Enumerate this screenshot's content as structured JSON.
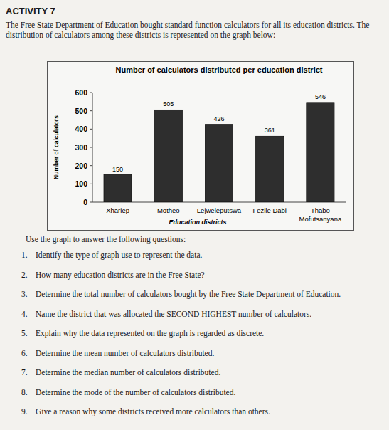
{
  "document": {
    "heading": "ACTIVITY 7",
    "intro": "The Free State Department of Education bought standard function calculators for all its education districts. The distribution of calculators among these districts is represented on the graph below:",
    "instruction": "Use the graph to answer the following questions:",
    "questions": [
      {
        "number": "1.",
        "text": "Identify the type of graph use to represent the data."
      },
      {
        "number": "2.",
        "text": "How many education districts are in the Free State?"
      },
      {
        "number": "3.",
        "text": "Determine the total number of calculators bought by the Free State Department of Education."
      },
      {
        "number": "4.",
        "text": "Name the district that was allocated the SECOND HIGHEST number of calculators."
      },
      {
        "number": "5.",
        "text": "Explain why the data represented on the graph is regarded as discrete."
      },
      {
        "number": "6.",
        "text": "Determine the mean number of calculators distributed."
      },
      {
        "number": "7.",
        "text": "Determine the median number of calculators distributed."
      },
      {
        "number": "8.",
        "text": "Determine the mode of the number of calculators distributed."
      },
      {
        "number": "9.",
        "text": "Give a reason why some districts received more calculators than others."
      }
    ]
  },
  "chart_data": {
    "type": "bar",
    "title": "Number of calculators distributed per education district",
    "x_label": "Education districts",
    "y_label": "Number of calculators",
    "categories": [
      "Xhariep",
      "Motheo",
      "Lejweleputswa",
      "Fezile Dabi",
      "Thabo Mofutsanyana"
    ],
    "values": [
      150,
      505,
      426,
      361,
      546
    ],
    "color": "#2e2e2e",
    "ylim": [
      0,
      600
    ],
    "yticks": [
      0,
      100,
      200,
      300,
      400,
      500,
      600
    ],
    "grid": false,
    "data_labels": true
  }
}
